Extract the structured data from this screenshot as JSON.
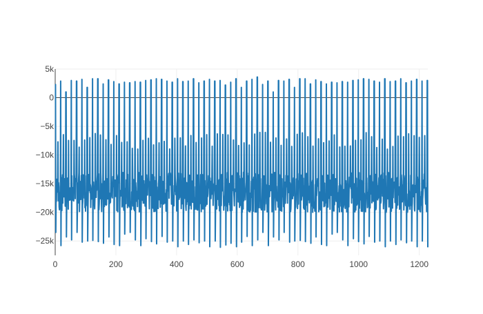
{
  "chart_data": {
    "type": "line",
    "title": "",
    "xlabel": "",
    "ylabel": "",
    "xlim": [
      0,
      1228
    ],
    "ylim": [
      -27500,
      5000
    ],
    "x_ticks": [
      0,
      200,
      400,
      600,
      800,
      1000,
      1200
    ],
    "x_tick_labels": [
      "0",
      "200",
      "400",
      "600",
      "800",
      "1000",
      "1200"
    ],
    "y_ticks": [
      5000,
      0,
      -5000,
      -10000,
      -15000,
      -20000,
      -25000
    ],
    "y_tick_labels": [
      "5k",
      "0",
      "−5k",
      "−10k",
      "−15k",
      "−20k",
      "−25k"
    ],
    "grid": true,
    "legend": "none",
    "line_color": "#1f77b4",
    "series": [
      {
        "x_start": 0,
        "x_end": 1228,
        "num_points": 1228,
        "cycle_period_approx": 17.5,
        "peak_maxima": [
          2300,
          2900,
          1000,
          3000,
          2900,
          3200,
          1800,
          3300,
          3300,
          2400,
          3100,
          2800,
          2400,
          2700,
          2600,
          2800,
          2700,
          3000,
          3100,
          3300,
          3200,
          2900,
          2700,
          3300,
          2800,
          2900,
          3300,
          2600,
          2900,
          3200,
          2900,
          3000,
          2200,
          2700,
          3300,
          1800,
          2900,
          3200,
          3600
        ],
        "trough_minima": [
          -23500,
          -25800,
          -24300,
          -24800,
          -23500,
          -25200,
          -25000,
          -24900,
          -25100,
          -25400,
          -24300,
          -25600,
          -25800,
          -23800,
          -23500,
          -24800,
          -25800,
          -24600,
          -25100,
          -25500,
          -24200,
          -25200,
          -25000,
          -26000,
          -25000,
          -25600,
          -24800,
          -25300,
          -25000,
          -26000,
          -25000,
          -26100,
          -25700,
          -25400,
          -26000,
          -25200,
          -24200,
          -25800,
          -24800
        ],
        "baseline_min": -20000,
        "baseline_max": -13000
      }
    ]
  }
}
